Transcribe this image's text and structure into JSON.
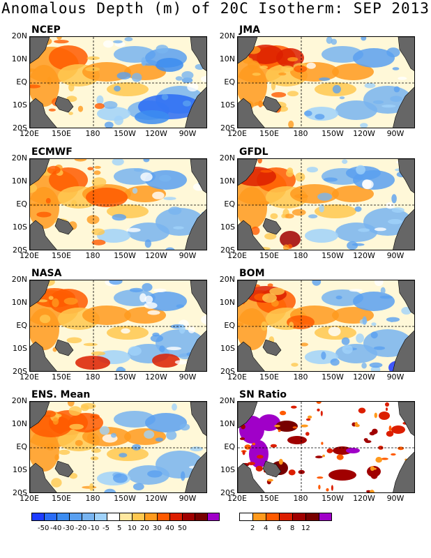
{
  "title": "Anomalous Depth (m) of 20C Isotherm: SEP 2013",
  "panels": [
    {
      "name": "NCEP"
    },
    {
      "name": "JMA"
    },
    {
      "name": "ECMWF"
    },
    {
      "name": "GFDL"
    },
    {
      "name": "NASA"
    },
    {
      "name": "BOM"
    },
    {
      "name": "ENS. Mean"
    },
    {
      "name": "SN Ratio"
    }
  ],
  "y_ticks": [
    "20N",
    "10N",
    "EQ",
    "10S",
    "20S"
  ],
  "x_ticks": [
    "120E",
    "150E",
    "180",
    "150W",
    "120W",
    "90W"
  ],
  "colorbar_anom": {
    "labels": [
      "-50",
      "-40",
      "-30",
      "-20",
      "-10",
      "-5",
      "5",
      "10",
      "20",
      "30",
      "40",
      "50"
    ],
    "colors": [
      "#1e3cff",
      "#2a6cf5",
      "#3c8cf0",
      "#5aa0f0",
      "#78b4f0",
      "#a0d2fa",
      "#ffffff",
      "#ffe8a0",
      "#ffc850",
      "#ff9a1e",
      "#ff5a00",
      "#dc1e00",
      "#a00000",
      "#780000",
      "#a000c8"
    ]
  },
  "colorbar_sn": {
    "labels": [
      "2",
      "4",
      "6",
      "8",
      "12"
    ],
    "colors": [
      "#ffffff",
      "#ff9a1e",
      "#ff5a00",
      "#dc1e00",
      "#a00000",
      "#780000",
      "#a000c8"
    ]
  },
  "colors": {
    "land": "#666666"
  }
}
